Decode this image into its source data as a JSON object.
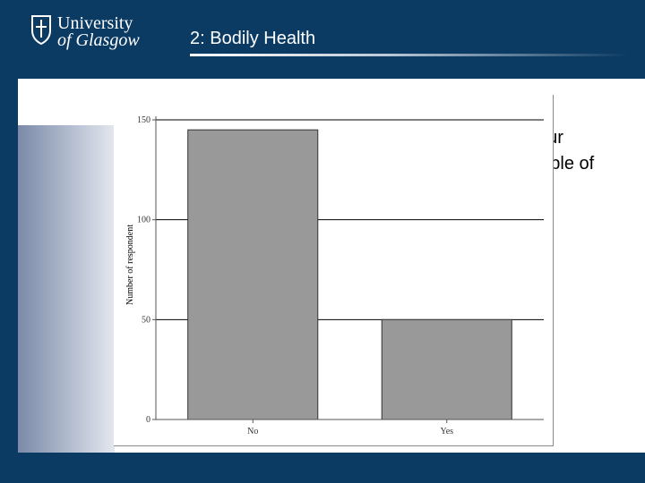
{
  "header": {
    "logo_line1": "University",
    "logo_line2": "of Glasgow",
    "slide_title": "2: Bodily Health",
    "background_color": "#0b3a63"
  },
  "background_text": {
    "line1_fragment": "our",
    "line2_fragment": "eople of"
  },
  "chart_data": {
    "type": "bar",
    "categories": [
      "No",
      "Yes"
    ],
    "values": [
      145,
      50
    ],
    "title": "",
    "xlabel": "",
    "ylabel": "Number of respondent",
    "ylim": [
      0,
      150
    ],
    "yticks": [
      0,
      50,
      100,
      150
    ],
    "grid": true,
    "bar_color": "#999999"
  }
}
